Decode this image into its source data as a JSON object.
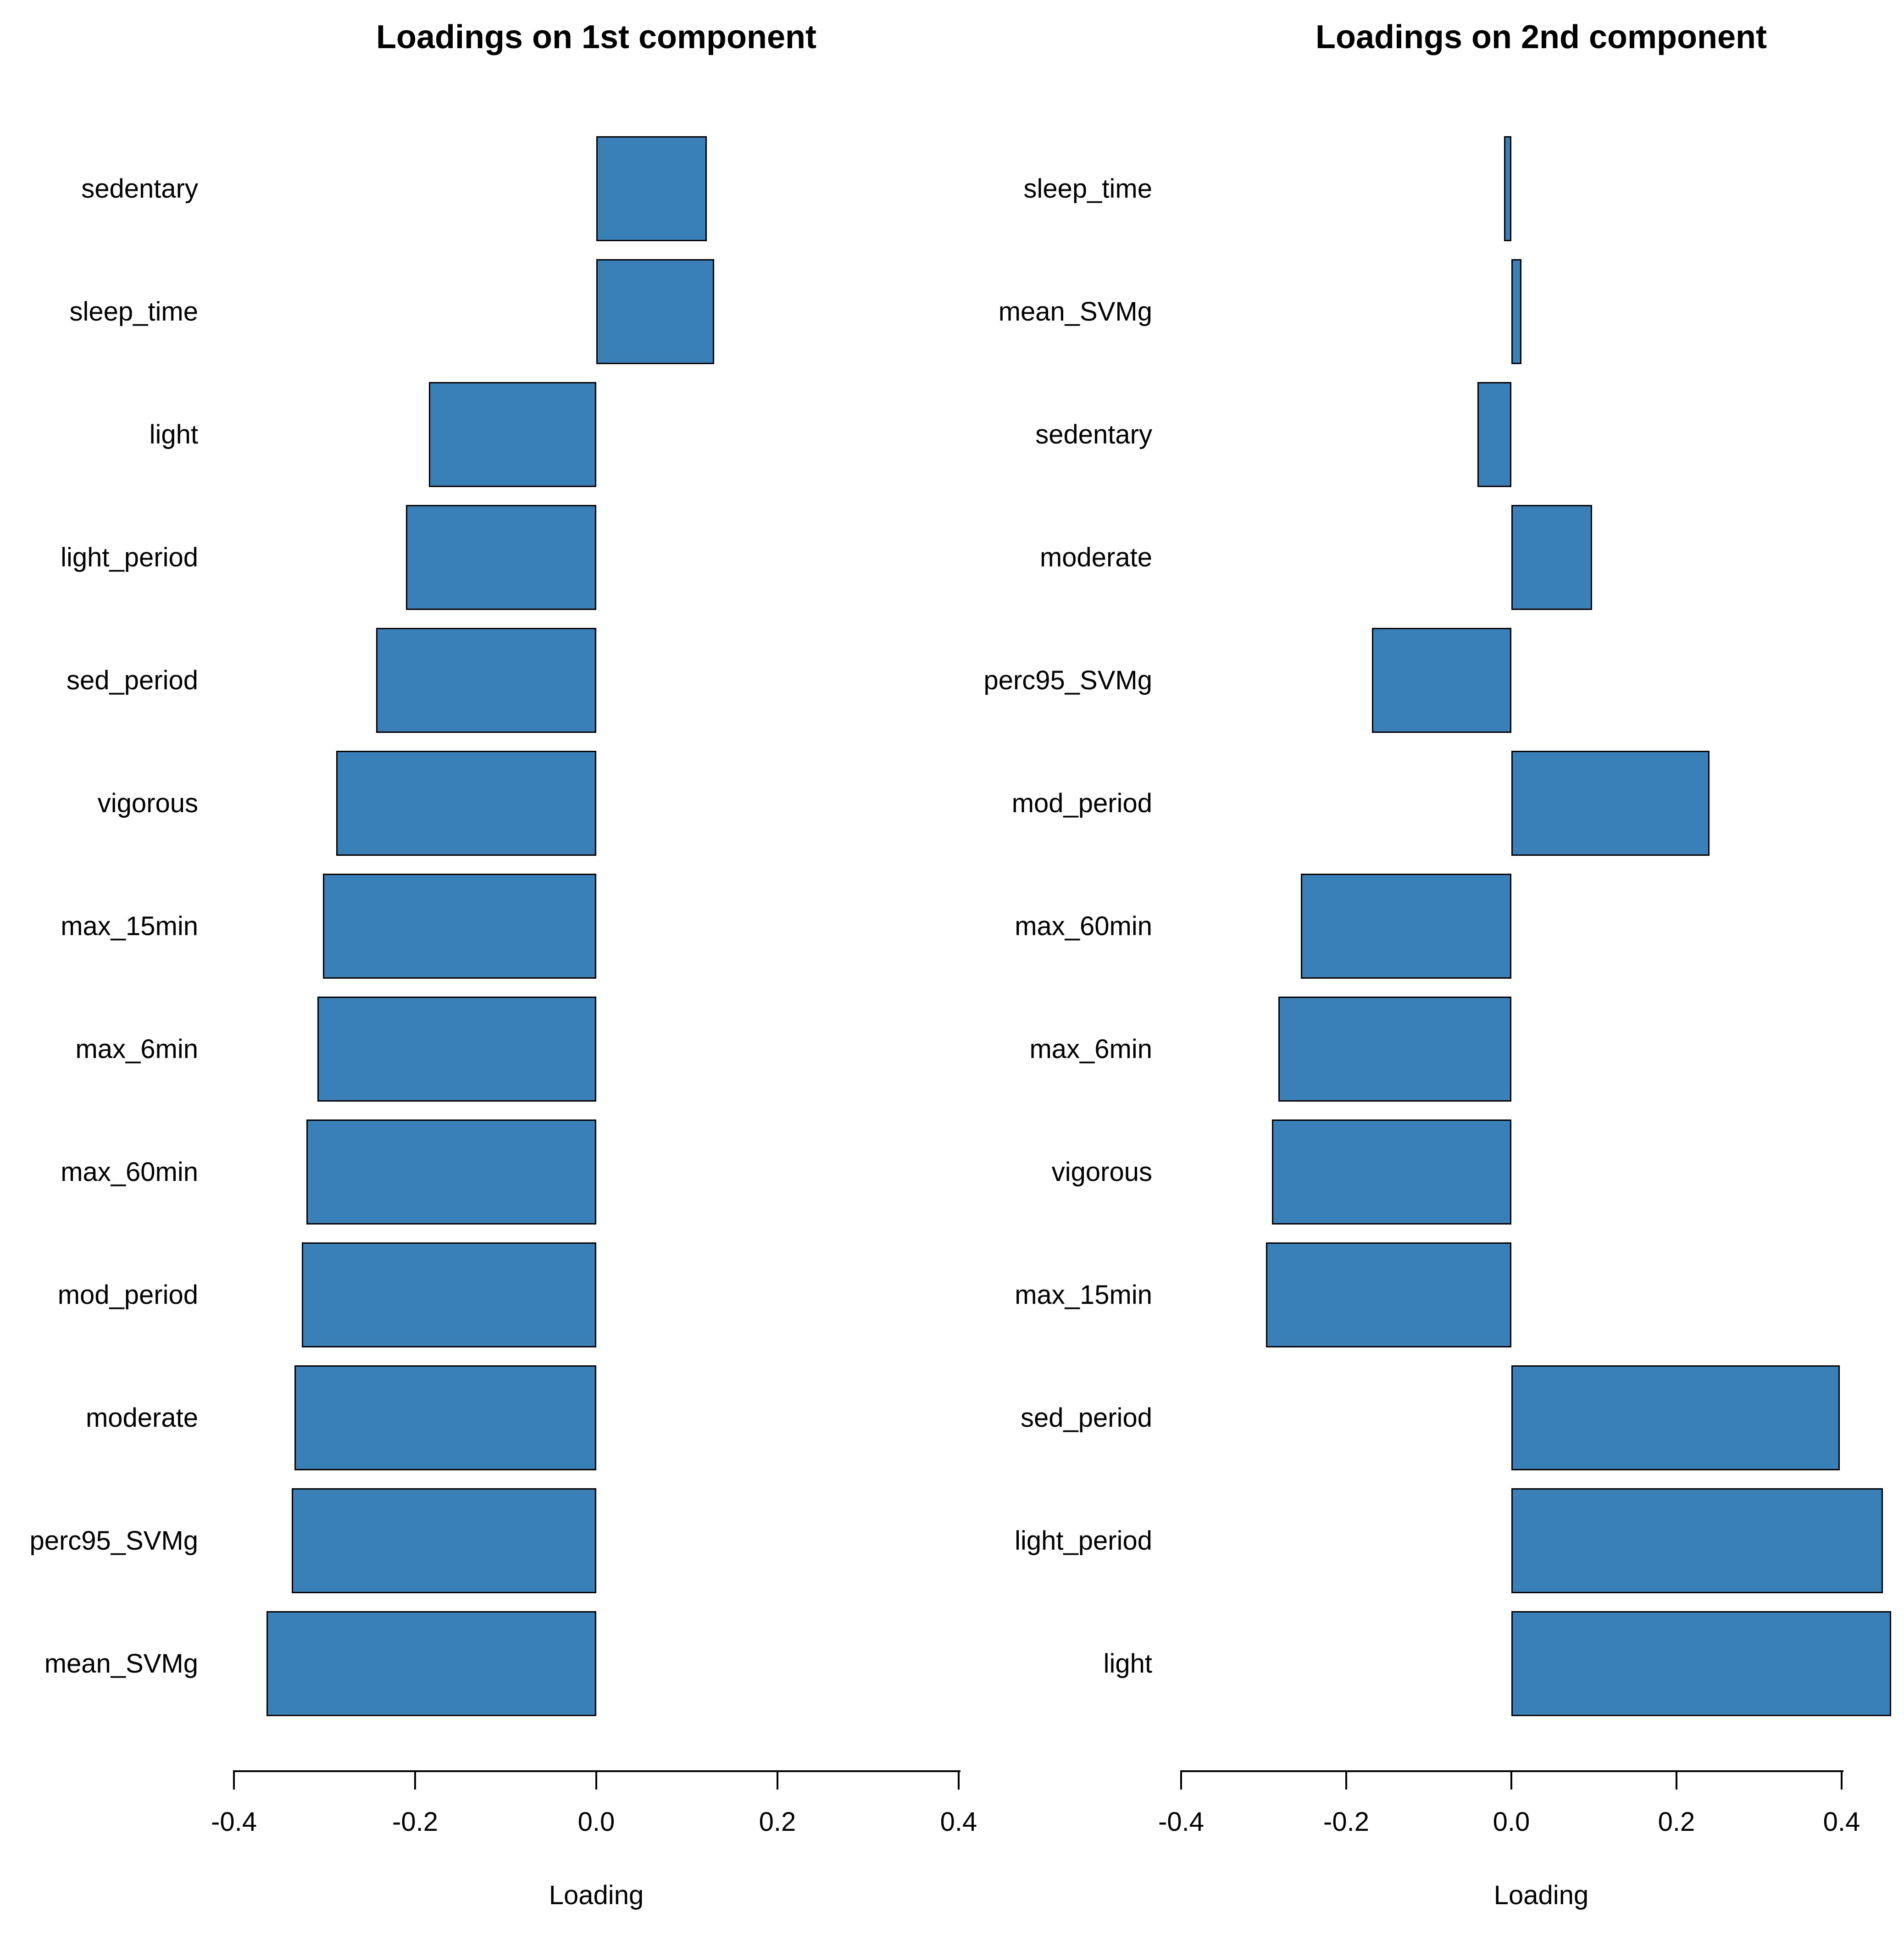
{
  "figure": {
    "background": "#ffffff",
    "bar_fill": "#3a80b8",
    "bar_edge": "#000000",
    "text_color": "#000000"
  },
  "chart_data": [
    {
      "type": "bar",
      "orientation": "horizontal",
      "title": "Loadings on 1st component",
      "xlabel": "Loading",
      "grid": false,
      "legend": null,
      "xlim": [
        -0.43,
        0.43
      ],
      "xticks": [
        -0.4,
        -0.2,
        0,
        0.2,
        0.4
      ],
      "xtick_labels": [
        "-0.4",
        "-0.2",
        "0.0",
        "0.2",
        "0.4"
      ],
      "categories": [
        "sedentary",
        "sleep_time",
        "light",
        "light_period",
        "sed_period",
        "vigorous",
        "max_15min",
        "max_6min",
        "max_60min",
        "mod_period",
        "moderate",
        "perc95_SVMg",
        "mean_SVMg"
      ],
      "values": [
        0.122,
        0.13,
        -0.185,
        -0.21,
        -0.243,
        -0.287,
        -0.302,
        -0.308,
        -0.32,
        -0.325,
        -0.333,
        -0.336,
        -0.364
      ]
    },
    {
      "type": "bar",
      "orientation": "horizontal",
      "title": "Loadings on 2nd component",
      "xlabel": "Loading",
      "grid": false,
      "legend": null,
      "xlim": [
        -0.43,
        0.47
      ],
      "xticks": [
        -0.4,
        -0.2,
        0,
        0.2,
        0.4
      ],
      "xtick_labels": [
        "-0.4",
        "-0.2",
        "0.0",
        "0.2",
        "0.4"
      ],
      "categories": [
        "sleep_time",
        "mean_SVMg",
        "sedentary",
        "moderate",
        "perc95_SVMg",
        "mod_period",
        "max_60min",
        "max_6min",
        "vigorous",
        "max_15min",
        "sed_period",
        "light_period",
        "light"
      ],
      "values": [
        -0.009,
        0.012,
        -0.041,
        0.098,
        -0.169,
        0.24,
        -0.255,
        -0.282,
        -0.29,
        -0.297,
        0.398,
        0.45,
        0.46
      ]
    }
  ]
}
